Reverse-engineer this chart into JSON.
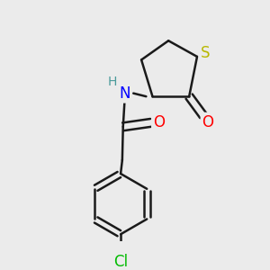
{
  "background_color": "#ebebeb",
  "bond_color": "#1a1a1a",
  "bond_width": 1.8,
  "atom_colors": {
    "S": "#b8b800",
    "N": "#0000ff",
    "O": "#ff0000",
    "Cl": "#00bb00",
    "H": "#4a9a9a"
  },
  "font_size": 11,
  "figsize": [
    3.0,
    3.0
  ],
  "dpi": 100,
  "xlim": [
    0.0,
    3.0
  ],
  "ylim": [
    0.0,
    3.0
  ]
}
